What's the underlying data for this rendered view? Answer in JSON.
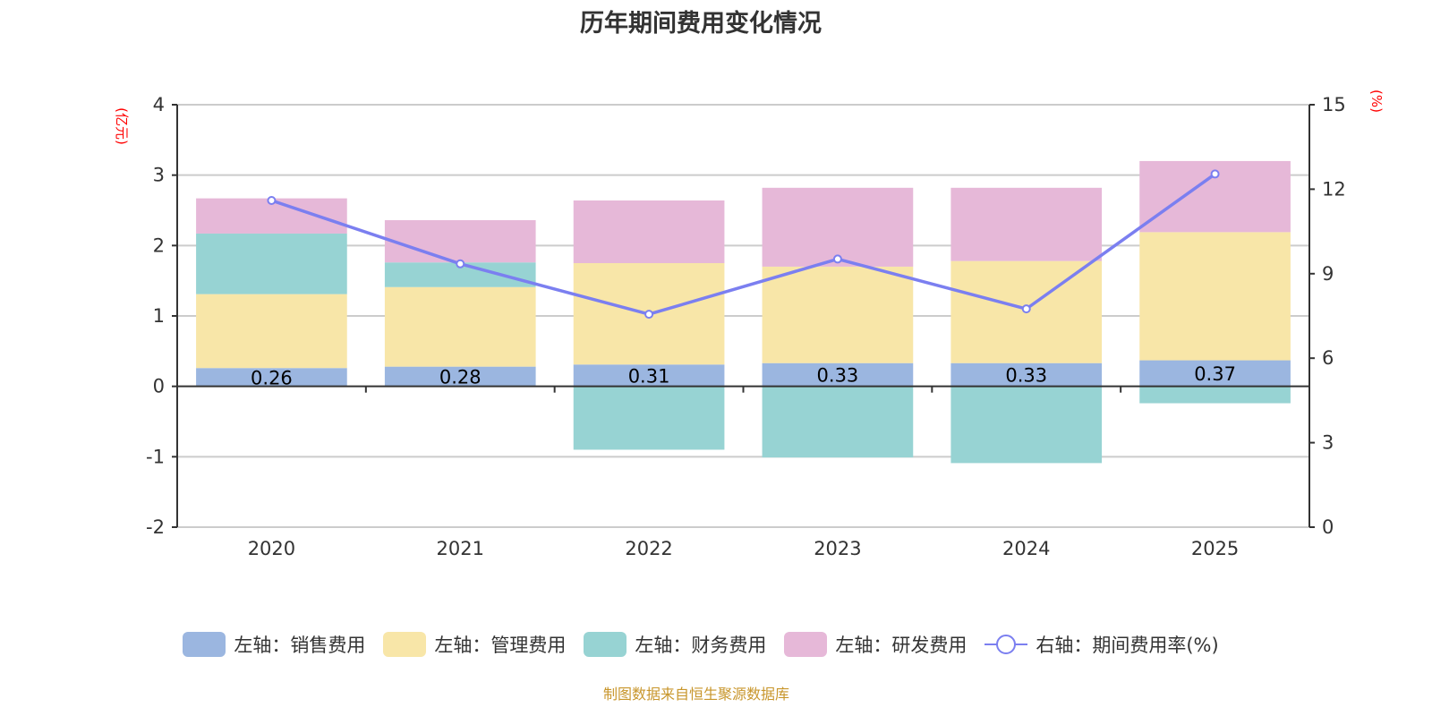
{
  "title": "历年期间费用变化情况",
  "footer": "制图数据来自恒生聚源数据库",
  "chart_data": {
    "type": "bar",
    "title": "历年期间费用变化情况",
    "categories": [
      "2020",
      "2021",
      "2022",
      "2023",
      "2024",
      "2025"
    ],
    "left_axis": {
      "unit_label": "(亿元)",
      "range": [
        -2,
        4
      ],
      "ticks": [
        4,
        3,
        2,
        1,
        0,
        -1,
        -2
      ]
    },
    "right_axis": {
      "unit_label": "(%)",
      "range": [
        0,
        15
      ],
      "ticks": [
        15,
        12,
        9,
        6,
        3,
        0
      ]
    },
    "grid": true,
    "legend_position": "bottom",
    "series": [
      {
        "name": "左轴：销售费用",
        "type": "bar",
        "axis": "left",
        "color": "#9bb6e0",
        "values": [
          0.26,
          0.28,
          0.31,
          0.33,
          0.33,
          0.37
        ],
        "labels": [
          "0.26",
          "0.28",
          "0.31",
          "0.33",
          "0.33",
          "0.37"
        ]
      },
      {
        "name": "左轴：管理费用",
        "type": "bar",
        "axis": "left",
        "color": "#f8e6a8",
        "values": [
          1.05,
          1.13,
          1.44,
          1.37,
          1.45,
          1.82
        ]
      },
      {
        "name": "左轴：财务费用",
        "type": "bar",
        "axis": "left",
        "color": "#97d3d3",
        "values": [
          0.86,
          0.35,
          -0.9,
          -1.01,
          -1.09,
          -0.24
        ]
      },
      {
        "name": "左轴：研发费用",
        "type": "bar",
        "axis": "left",
        "color": "#e6b8d8",
        "values": [
          0.5,
          0.6,
          0.89,
          1.12,
          1.04,
          1.01
        ]
      },
      {
        "name": "右轴：期间费用率(%)",
        "type": "line",
        "axis": "right",
        "color": "#7b7ff0",
        "values": [
          11.6,
          9.35,
          7.56,
          9.52,
          7.75,
          12.54
        ]
      }
    ]
  }
}
